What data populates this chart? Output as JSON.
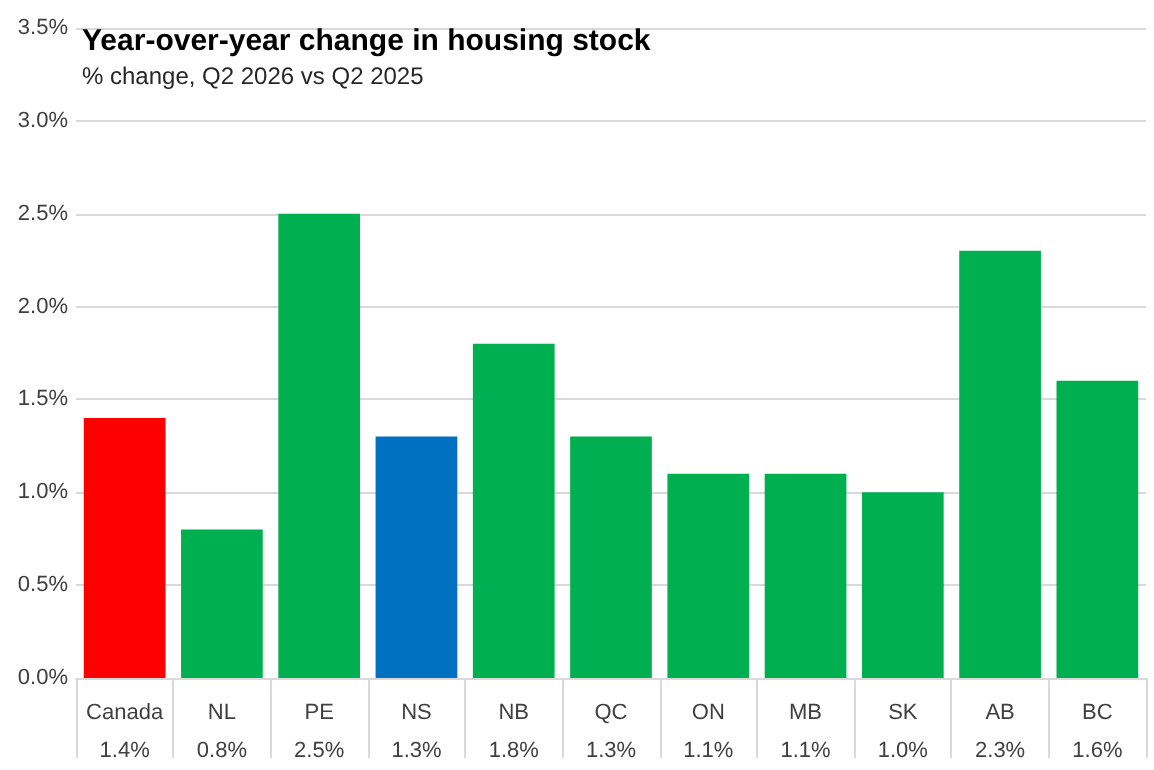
{
  "chart_data": {
    "type": "bar",
    "title": "Year-over-year change in housing stock",
    "subtitle": "% change, Q2 2026 vs Q2 2025",
    "categories": [
      "Canada",
      "NL",
      "PE",
      "NS",
      "NB",
      "QC",
      "ON",
      "MB",
      "SK",
      "AB",
      "BC"
    ],
    "values": [
      1.4,
      0.8,
      2.5,
      1.3,
      1.8,
      1.3,
      1.1,
      1.1,
      1.0,
      2.3,
      1.6
    ],
    "colors": [
      "#ff0000",
      "#00b050",
      "#00b050",
      "#0070c0",
      "#00b050",
      "#00b050",
      "#00b050",
      "#00b050",
      "#00b050",
      "#00b050",
      "#00b050"
    ],
    "value_labels": [
      "1.4%",
      "0.8%",
      "2.5%",
      "1.3%",
      "1.8%",
      "1.3%",
      "1.1%",
      "1.1%",
      "1.0%",
      "2.3%",
      "1.6%"
    ],
    "ylim": [
      0,
      3.5
    ],
    "yticks": [
      {
        "value": 0,
        "label": "0.0%"
      },
      {
        "value": 0.5,
        "label": "0.5%"
      },
      {
        "value": 1,
        "label": "1.0%"
      },
      {
        "value": 1.5,
        "label": "1.5%"
      },
      {
        "value": 2,
        "label": "2.0%"
      },
      {
        "value": 2.5,
        "label": "2.5%"
      },
      {
        "value": 3,
        "label": "3.0%"
      },
      {
        "value": 3.5,
        "label": "3.5%"
      }
    ],
    "grid": "y"
  }
}
